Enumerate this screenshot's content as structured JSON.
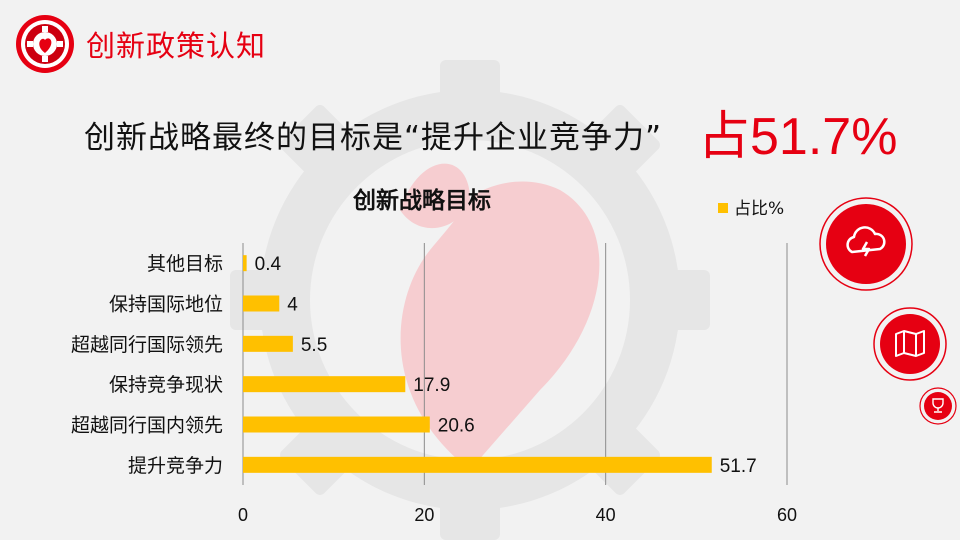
{
  "header": {
    "section_title": "创新政策认知",
    "logo_icon": "gear-heart-logo"
  },
  "headline": {
    "text": "创新战略最终的目标是“提升企业竞争力”",
    "stat": "占51.7%"
  },
  "colors": {
    "accent": "#e60012",
    "bar": "#ffc000",
    "watermark_gear": "#e4e4e4",
    "watermark_heart": "#f6c9cc"
  },
  "chart_data": {
    "type": "bar",
    "orientation": "horizontal",
    "title": "创新战略目标",
    "categories": [
      "其他目标",
      "保持国际地位",
      "超越同行国际领先",
      "保持竞争现状",
      "超越同行国内领先",
      "提升竞争力"
    ],
    "series": [
      {
        "name": "占比%",
        "values": [
          0.4,
          4,
          5.5,
          17.9,
          20.6,
          51.7
        ]
      }
    ],
    "data_labels": [
      "0.4",
      "4",
      "5.5",
      "17.9",
      "20.6",
      "51.7"
    ],
    "xlim": [
      0,
      60
    ],
    "x_ticks": [
      "0",
      "20",
      "40",
      "60"
    ],
    "grid": "vertical",
    "legend": "top-right"
  },
  "side_buttons": [
    {
      "icon": "cloud-lightning-icon"
    },
    {
      "icon": "map-icon"
    },
    {
      "icon": "trophy-icon"
    }
  ]
}
